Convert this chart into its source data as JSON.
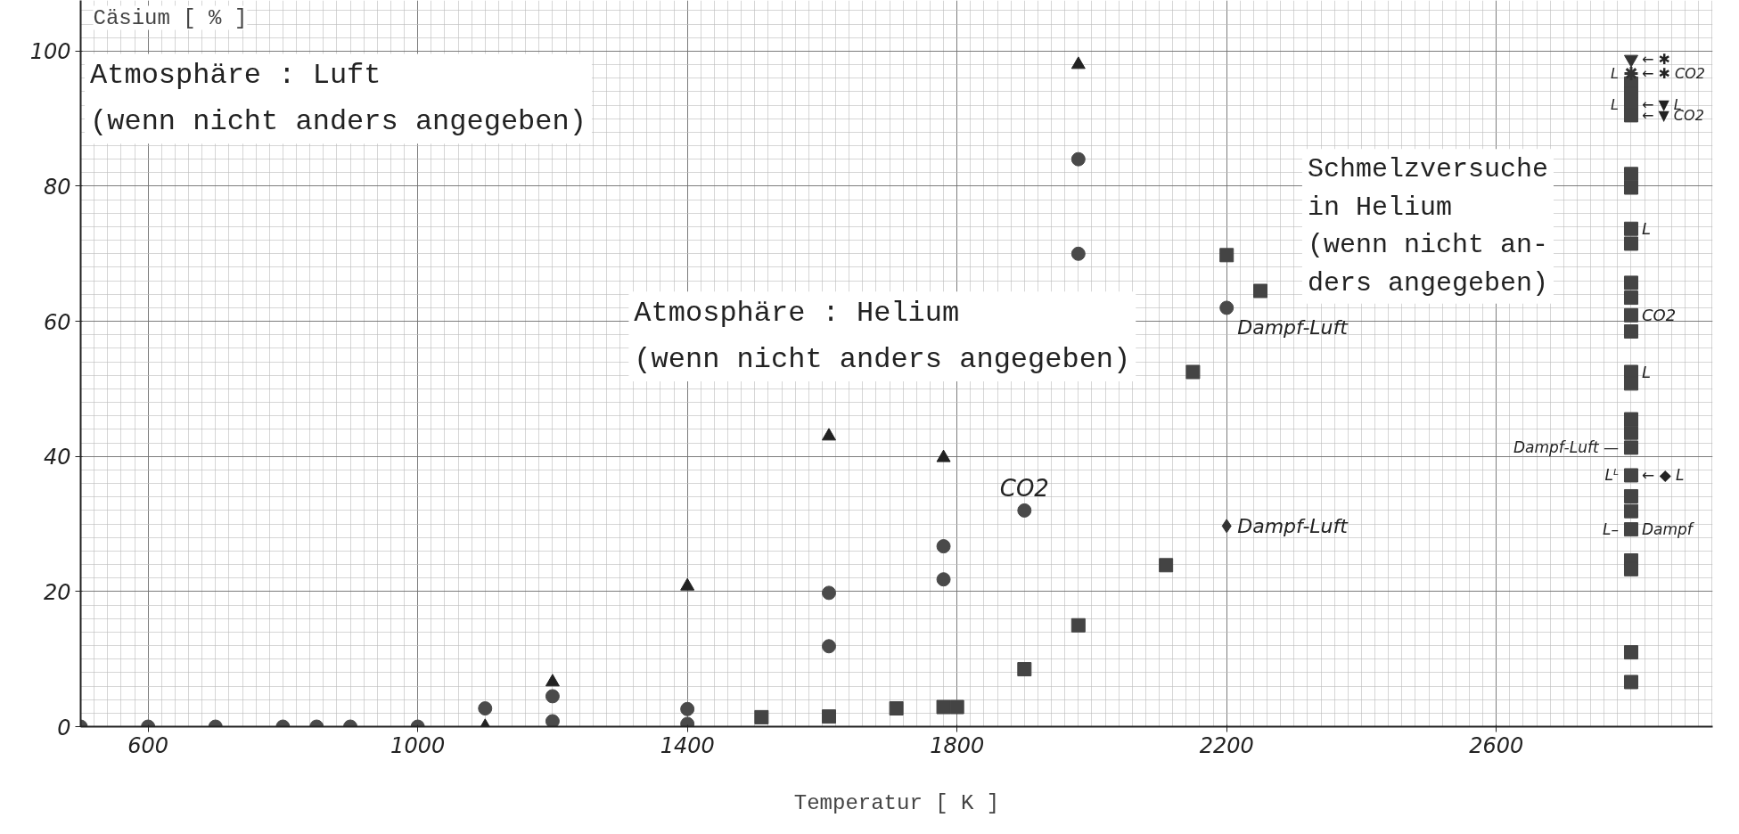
{
  "chart_data": {
    "type": "scatter",
    "xlabel": "Temperatur [ K ]",
    "ylabel": "Cäsium [ % ]",
    "xlim": [
      500,
      2921
    ],
    "ylim": [
      0,
      107.5
    ],
    "xticks": [
      600,
      1000,
      1400,
      1800,
      2200,
      2600
    ],
    "yticks": [
      0,
      20,
      40,
      60,
      80,
      100
    ],
    "grid": true,
    "series": [
      {
        "marker": "circle",
        "color": "#4a4a4a",
        "x": [
          500,
          600,
          700,
          800,
          850,
          900,
          1000,
          1100,
          1200,
          1200,
          1400,
          1400,
          1610,
          1610,
          1780,
          1780,
          1900,
          1980,
          1980,
          2200
        ],
        "values": [
          0,
          0,
          0,
          0,
          0,
          0,
          0,
          2.7,
          4.5,
          0.8,
          2.6,
          0.4,
          19.8,
          11.9,
          26.7,
          21.8,
          32,
          84,
          70,
          62
        ]
      },
      {
        "marker": "triangle",
        "color": "#222222",
        "x": [
          1100,
          1200,
          1400,
          1610,
          1780,
          1980
        ],
        "values": [
          0,
          6.6,
          20.8,
          43,
          39.8,
          98
        ]
      },
      {
        "marker": "square",
        "color": "#444444",
        "x": [
          1510,
          1610,
          1710,
          1780,
          1800,
          1900,
          1980,
          2110,
          2150,
          2200,
          2250,
          2800,
          2800,
          2800,
          2800,
          2800,
          2800,
          2800,
          2800,
          2800,
          2800,
          2800,
          2800,
          2800,
          2800,
          2800,
          2800,
          2800,
          2800,
          2800,
          2800,
          2800,
          2800,
          2800,
          2800,
          2800
        ],
        "values": [
          1.4,
          1.5,
          2.7,
          2.9,
          2.9,
          8.5,
          15,
          23.9,
          52.5,
          69.8,
          64.5,
          95.2,
          93.7,
          92.1,
          90.5,
          81.8,
          79.8,
          73.7,
          71.5,
          65.7,
          63.5,
          60.9,
          58.5,
          52.5,
          50.8,
          45.5,
          43.5,
          41.3,
          37.2,
          34.1,
          31.9,
          29.2,
          24.6,
          23.3,
          11,
          6.6
        ]
      },
      {
        "marker": "diamond",
        "color": "#333333",
        "x": [
          2200
        ],
        "values": [
          29.7
        ]
      },
      {
        "marker": "triangle_down",
        "color": "#333333",
        "x": [
          2800
        ],
        "values": [
          98.8
        ]
      },
      {
        "marker": "cross",
        "color": "#333333",
        "x": [
          2800
        ],
        "values": [
          96.7
        ]
      }
    ],
    "annotations": [
      "Atmosphäre : Luft\n(wenn nicht anders angegeben)",
      "Atmosphäre : Helium\n(wenn nicht anders angegeben)",
      "Schmelzversuche\nin Helium\n(wenn nicht an-\nders angegeben)",
      {
        "text": "CO2",
        "x": 1900,
        "y": 32
      },
      {
        "text": "Dampf-Luft",
        "x": 2200,
        "y": 62
      },
      {
        "text": "Dampf-Luft",
        "x": 2200,
        "y": 29.7
      },
      {
        "text": "← ✱",
        "x": 2800,
        "y": 98.8
      },
      {
        "text": "L",
        "x": 2800,
        "y": 96.7
      },
      {
        "text": "← ✱ CO2",
        "x": 2800,
        "y": 96.7
      },
      {
        "text": "L",
        "x": 2800,
        "y": 92.1
      },
      {
        "text": "← ▼ L",
        "x": 2800,
        "y": 92.1
      },
      {
        "text": "← ▼ CO2",
        "x": 2800,
        "y": 90.5
      },
      {
        "text": "L",
        "x": 2800,
        "y": 73.7
      },
      {
        "text": "CO2",
        "x": 2800,
        "y": 60.9
      },
      {
        "text": "L",
        "x": 2800,
        "y": 52.5
      },
      {
        "text": "Dampf-Luft —",
        "x": 2800,
        "y": 41.3
      },
      {
        "text": "Lᴸ",
        "x": 2800,
        "y": 37.2
      },
      {
        "text": "← ◆ L",
        "x": 2800,
        "y": 37.2
      },
      {
        "text": "L–",
        "x": 2800,
        "y": 29.2
      },
      {
        "text": "Dampf",
        "x": 2800,
        "y": 29.2
      }
    ]
  }
}
